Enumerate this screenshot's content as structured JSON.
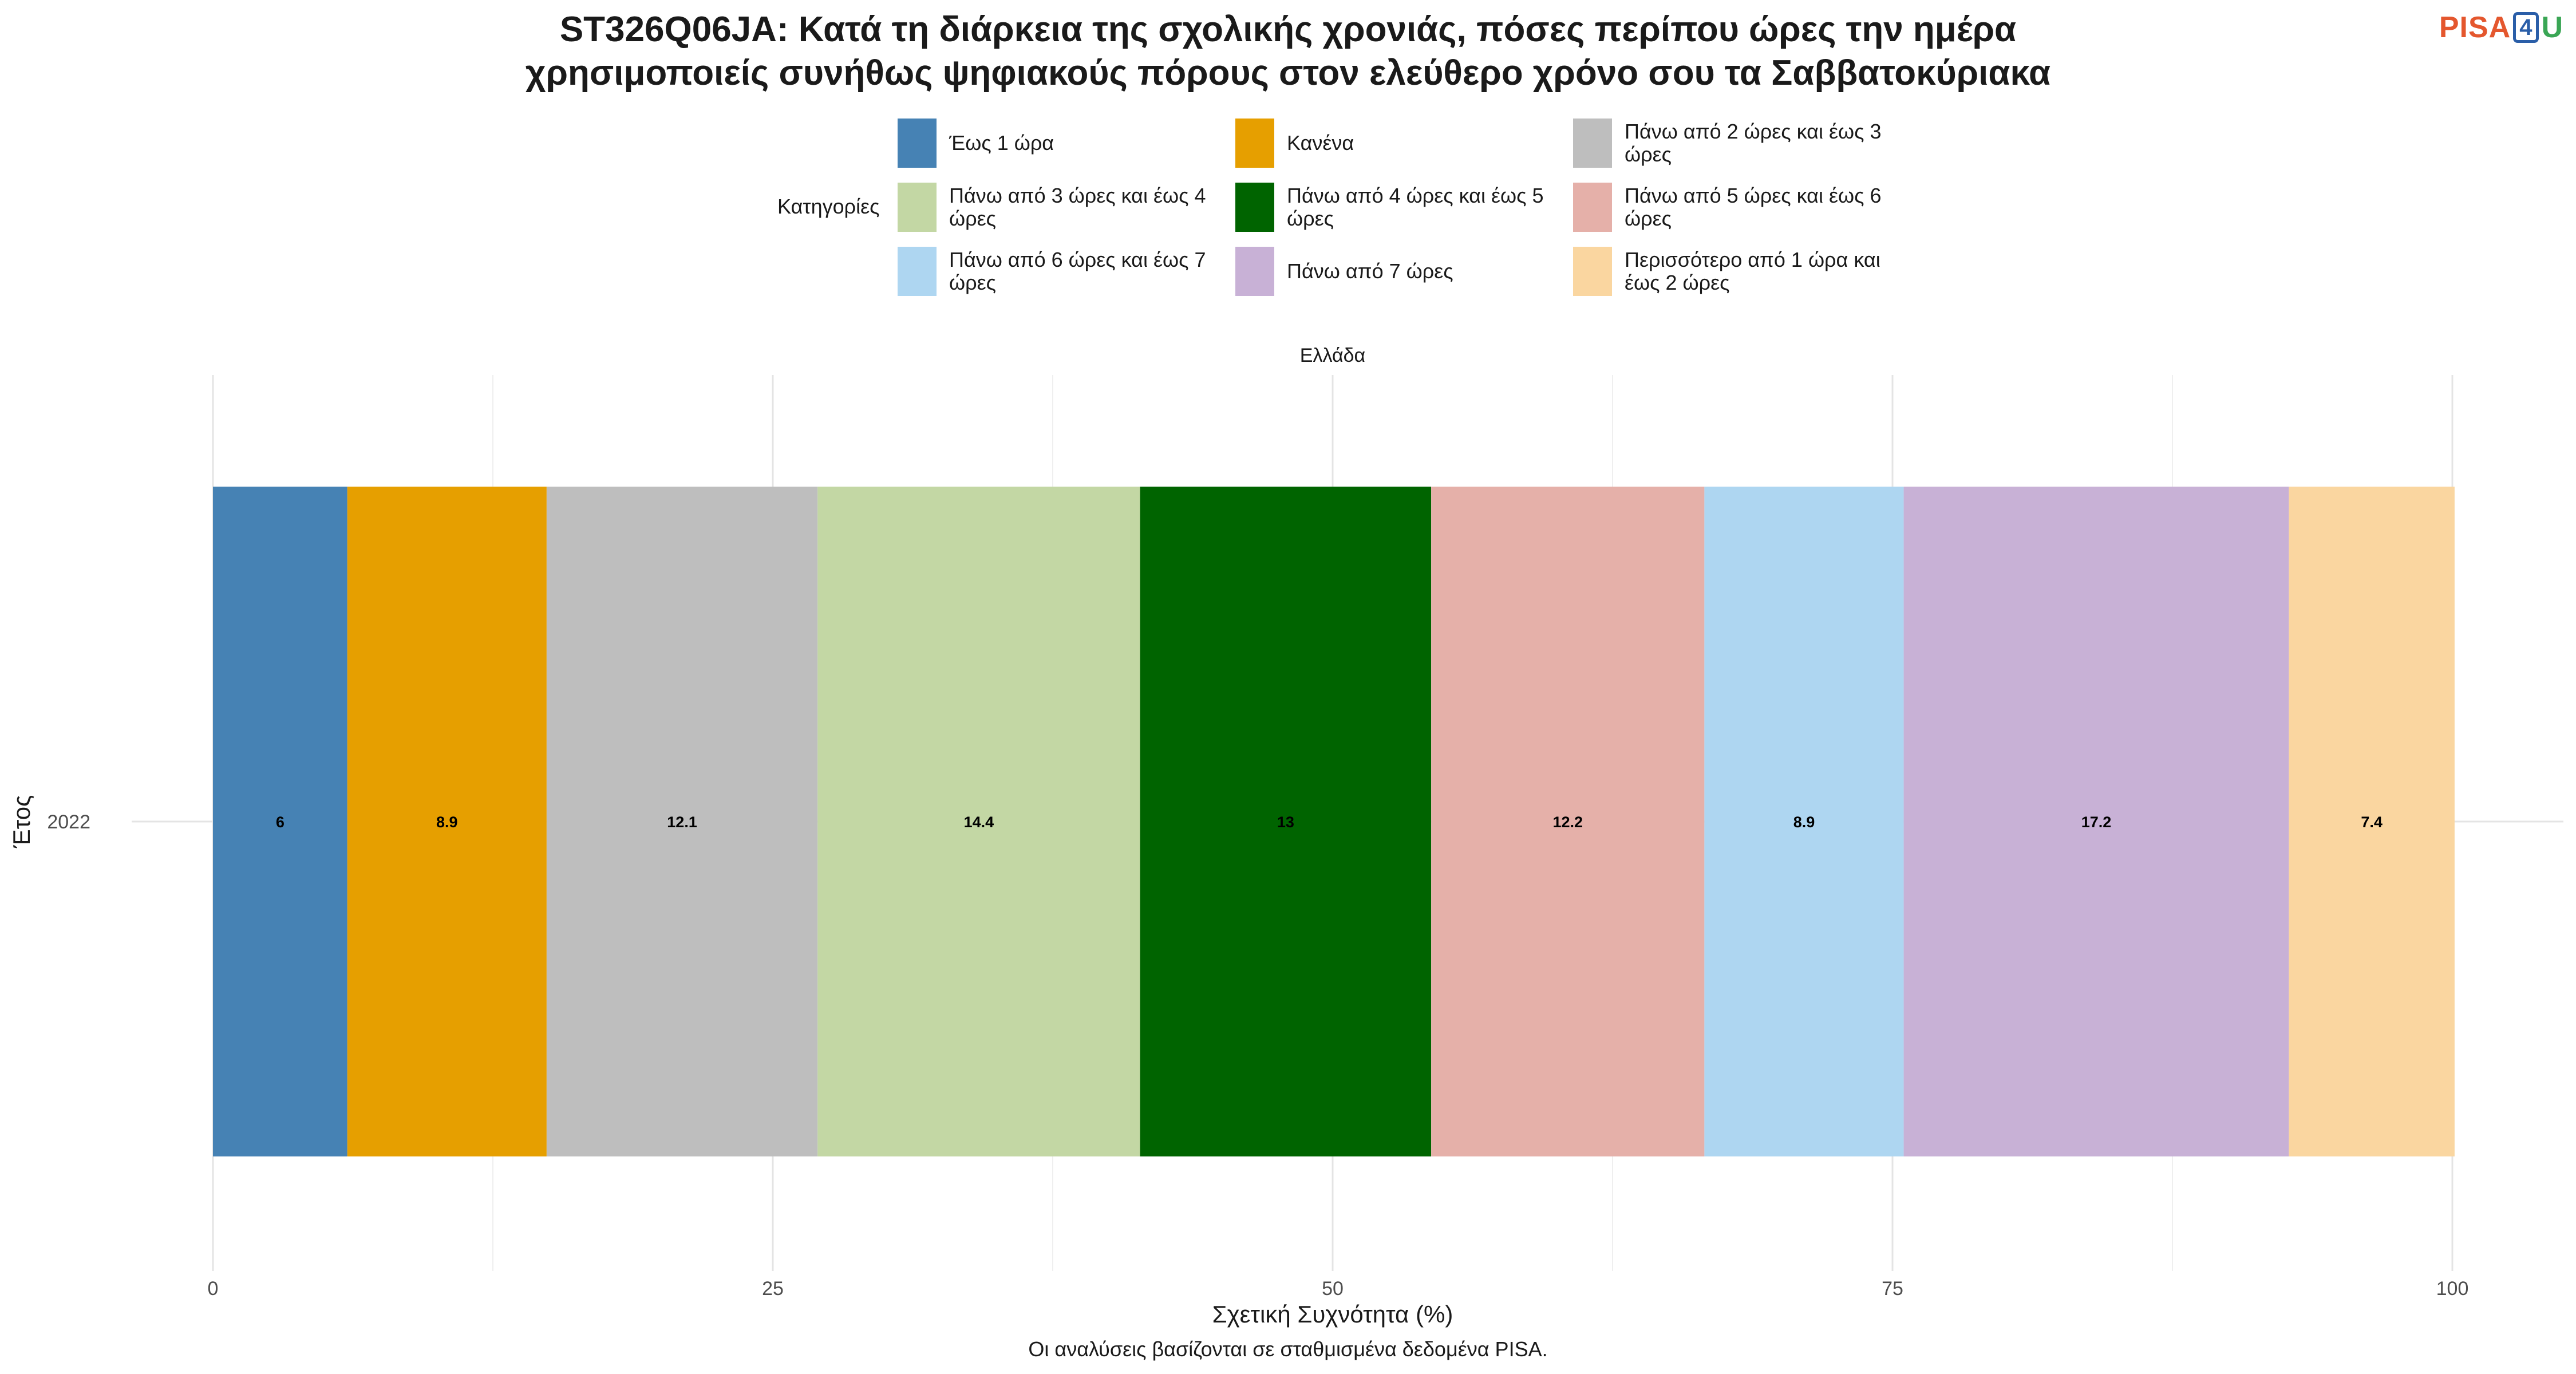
{
  "title_lines": [
    "ST326Q06JA: Κατά τη διάρκεια της σχολικής χρονιάς, πόσες περίπου ώρες την ημέρα",
    "χρησιμοποιείς συνήθως ψηφιακούς πόρους στον ελεύθερο χρόνο σου τα Σαββατοκύριακα"
  ],
  "logo": {
    "prefix": "PISA",
    "middle": "4",
    "suffix": "U"
  },
  "legend_title": "Κατηγορίες",
  "caption": "Οι αναλύσεις βασίζονται σε σταθμισμένα δεδομένα PISA.",
  "chart_data": {
    "type": "bar",
    "orientation": "horizontal",
    "stacked": true,
    "facet": "Ελλάδα",
    "xlabel": "Σχετική Συχνότητα (%)",
    "ylabel": "Έτος",
    "xlim": [
      0,
      100
    ],
    "xticks": [
      "0",
      "25",
      "50",
      "75",
      "100"
    ],
    "categories": [
      "2022"
    ],
    "series": [
      {
        "name": "Έως 1 ώρα",
        "color": "#4682B4",
        "values": [
          6
        ],
        "label": "6"
      },
      {
        "name": "Κανένα",
        "color": "#E69F00",
        "values": [
          8.9
        ],
        "label": "8.9"
      },
      {
        "name": "Πάνω από 2 ώρες και έως 3 ώρες",
        "color": "#BEBEBE",
        "values": [
          12.1
        ],
        "label": "12.1"
      },
      {
        "name": "Πάνω από 3 ώρες και έως 4 ώρες",
        "color": "#C3D7A4",
        "values": [
          14.4
        ],
        "label": "14.4"
      },
      {
        "name": "Πάνω από 4 ώρες και έως 5 ώρες",
        "color": "#006400",
        "values": [
          13
        ],
        "label": "13"
      },
      {
        "name": "Πάνω από 5 ώρες και έως 6 ώρες",
        "color": "#E5B0A9",
        "values": [
          12.2
        ],
        "label": "12.2"
      },
      {
        "name": "Πάνω από 6 ώρες και έως 7 ώρες",
        "color": "#AED6F1",
        "values": [
          8.9
        ],
        "label": "8.9"
      },
      {
        "name": "Πάνω από 7 ώρες",
        "color": "#C8B1D6",
        "values": [
          17.2
        ],
        "label": "17.2"
      },
      {
        "name": "Περισσότερο από 1 ώρα και έως 2 ώρες",
        "color": "#FAD6A0",
        "values": [
          7.4
        ],
        "label": "7.4"
      }
    ],
    "legend_position": "top",
    "grid": true
  }
}
